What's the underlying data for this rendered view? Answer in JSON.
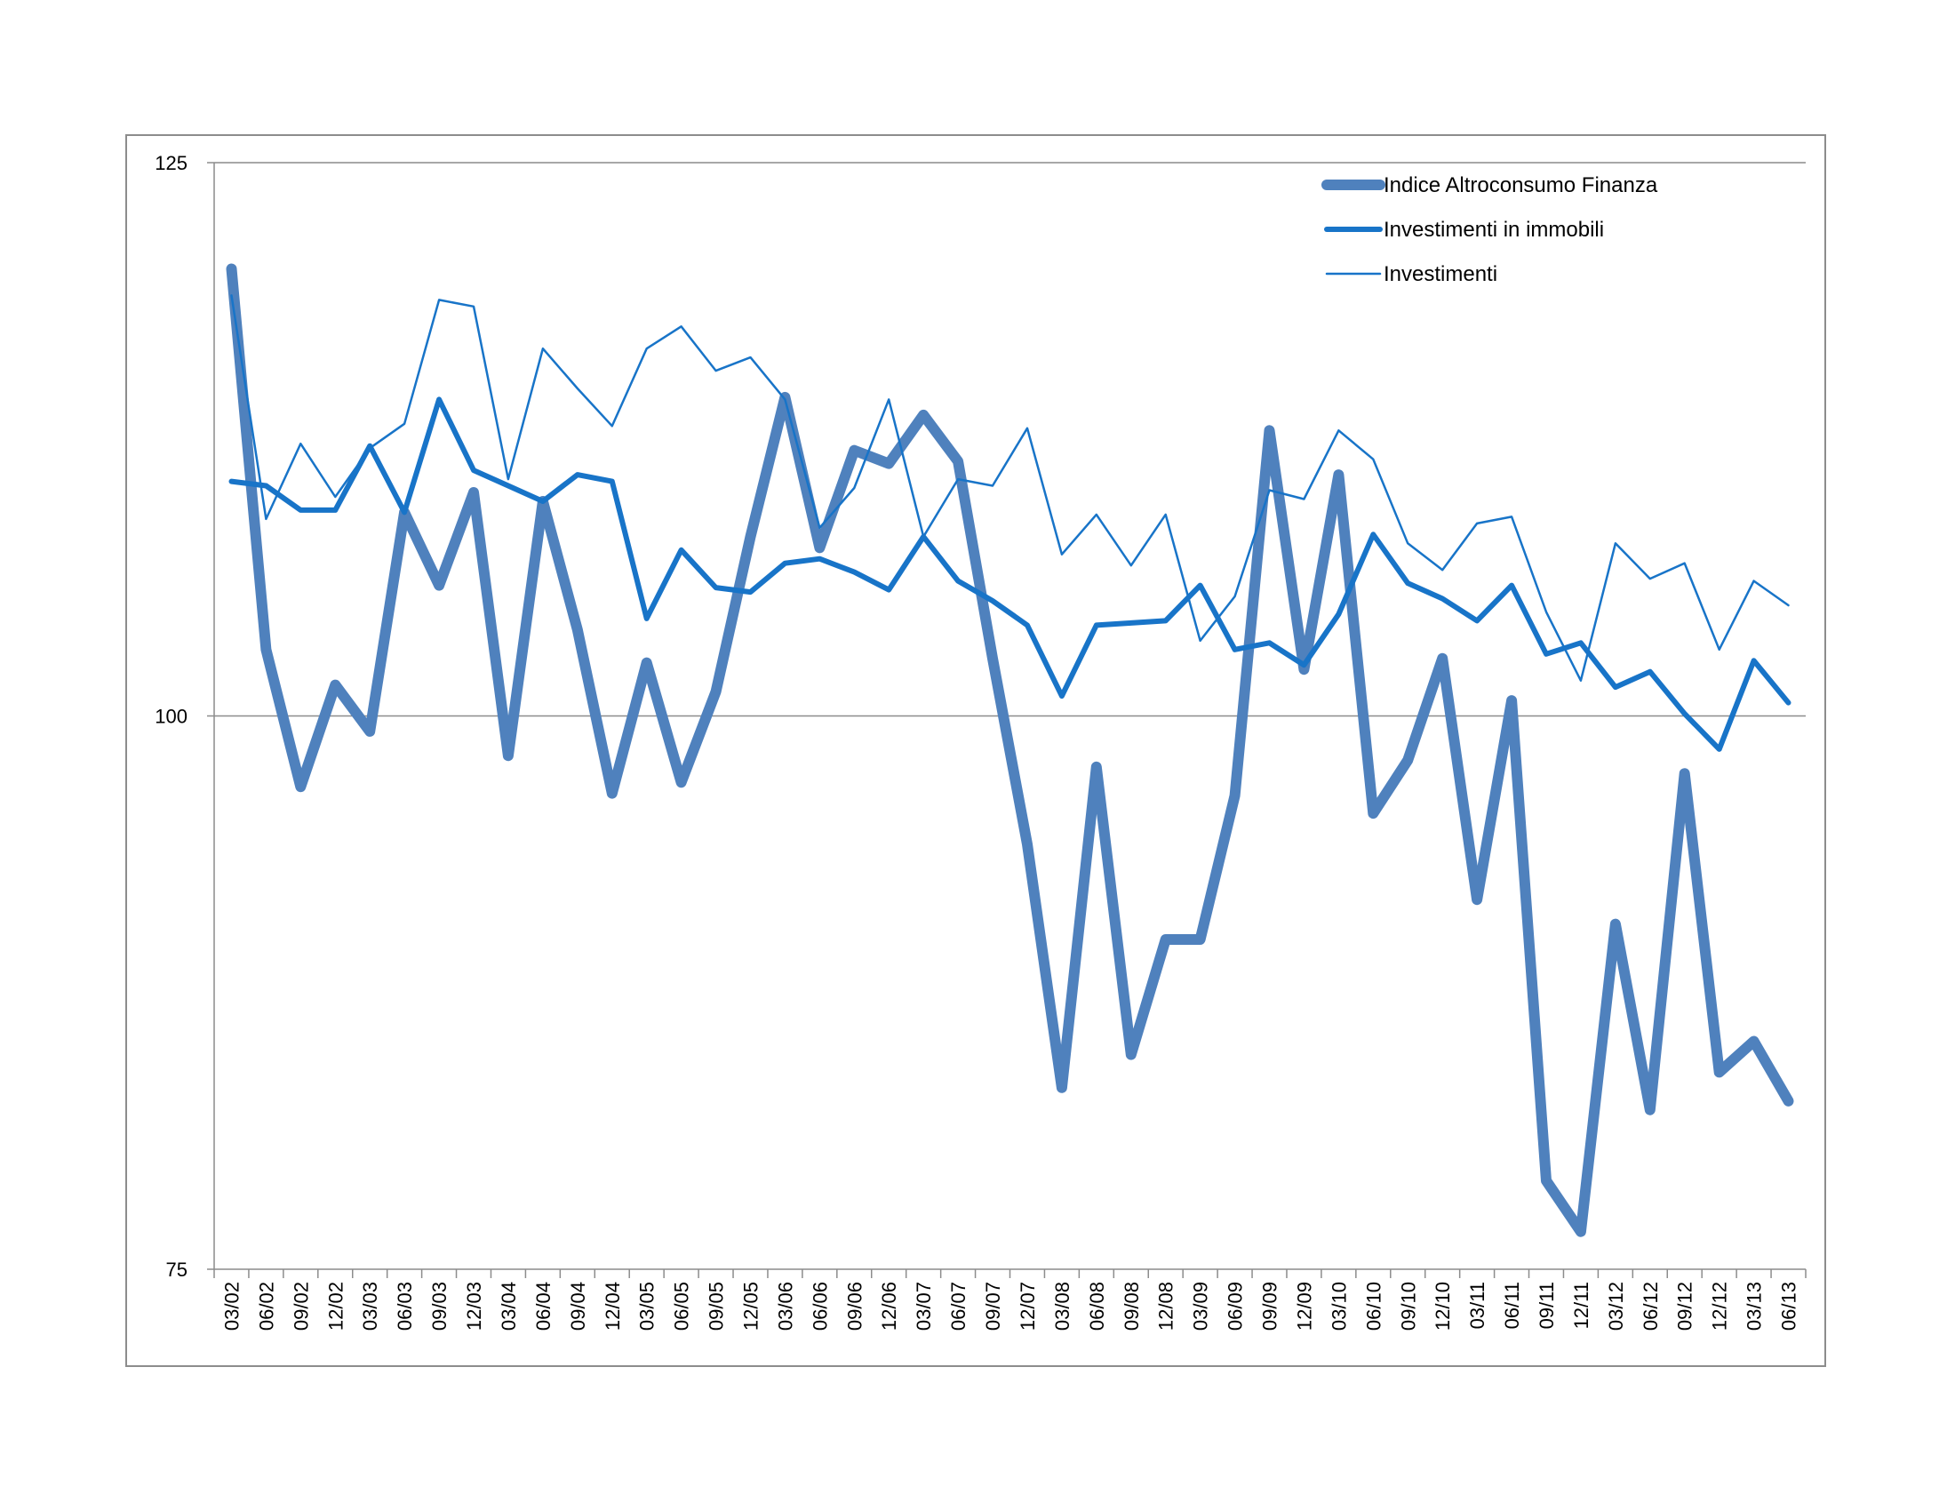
{
  "chart_data": {
    "type": "line",
    "title": "",
    "xlabel": "",
    "ylabel": "",
    "ylim": [
      75,
      125
    ],
    "yticks": [
      75,
      100,
      125
    ],
    "grid": true,
    "legend_position": "top-right",
    "categories": [
      "03/02",
      "06/02",
      "09/02",
      "12/02",
      "03/03",
      "06/03",
      "09/03",
      "12/03",
      "03/04",
      "06/04",
      "09/04",
      "12/04",
      "03/05",
      "06/05",
      "09/05",
      "12/05",
      "03/06",
      "06/06",
      "09/06",
      "12/06",
      "03/07",
      "06/07",
      "09/07",
      "12/07",
      "03/08",
      "06/08",
      "09/08",
      "12/08",
      "03/09",
      "06/09",
      "09/09",
      "12/09",
      "03/10",
      "06/10",
      "09/10",
      "12/10",
      "03/11",
      "06/11",
      "09/11",
      "12/11",
      "03/12",
      "06/12",
      "09/12",
      "12/12",
      "03/13",
      "06/13"
    ],
    "series": [
      {
        "name": "Indice Altroconsumo Finanza",
        "color": "#4f81bd",
        "style": "thick",
        "values": [
          120.2,
          103.0,
          96.8,
          101.4,
          99.3,
          109.2,
          105.9,
          110.1,
          98.2,
          109.7,
          103.9,
          96.5,
          102.4,
          97.0,
          101.1,
          108.1,
          114.4,
          107.6,
          112.0,
          111.4,
          113.6,
          111.5,
          102.6,
          94.2,
          83.2,
          97.7,
          84.7,
          89.9,
          89.9,
          96.4,
          112.9,
          102.1,
          110.9,
          95.6,
          98.0,
          102.6,
          91.7,
          100.7,
          79.0,
          76.7,
          90.6,
          82.2,
          97.4,
          83.9,
          85.3,
          82.6
        ]
      },
      {
        "name": "Investimenti in immobili",
        "color": "#1874c8",
        "style": "medium",
        "values": [
          110.6,
          110.4,
          109.3,
          109.3,
          112.2,
          109.2,
          114.3,
          111.1,
          110.4,
          109.7,
          110.9,
          110.6,
          104.4,
          107.5,
          105.8,
          105.6,
          106.9,
          107.1,
          106.5,
          105.7,
          108.1,
          106.1,
          105.2,
          104.1,
          100.9,
          104.1,
          104.2,
          104.3,
          105.9,
          103.0,
          103.3,
          102.3,
          104.6,
          108.2,
          106.0,
          105.3,
          104.3,
          105.9,
          102.8,
          103.3,
          101.3,
          102.0,
          100.1,
          98.5,
          102.5,
          100.6
        ]
      },
      {
        "name": "Investimenti",
        "color": "#1874c8",
        "style": "thin",
        "values": [
          119.0,
          108.9,
          112.3,
          109.9,
          112.1,
          113.2,
          118.8,
          118.5,
          110.7,
          116.6,
          114.8,
          113.1,
          116.6,
          117.6,
          115.6,
          116.2,
          114.3,
          108.5,
          110.3,
          114.3,
          108.1,
          110.7,
          110.4,
          113.0,
          107.3,
          109.1,
          106.8,
          109.1,
          103.4,
          105.4,
          110.2,
          109.8,
          112.9,
          111.6,
          107.8,
          106.6,
          108.7,
          109.0,
          104.7,
          101.6,
          107.8,
          106.2,
          106.9,
          103.0,
          106.1,
          105.0
        ]
      }
    ]
  }
}
